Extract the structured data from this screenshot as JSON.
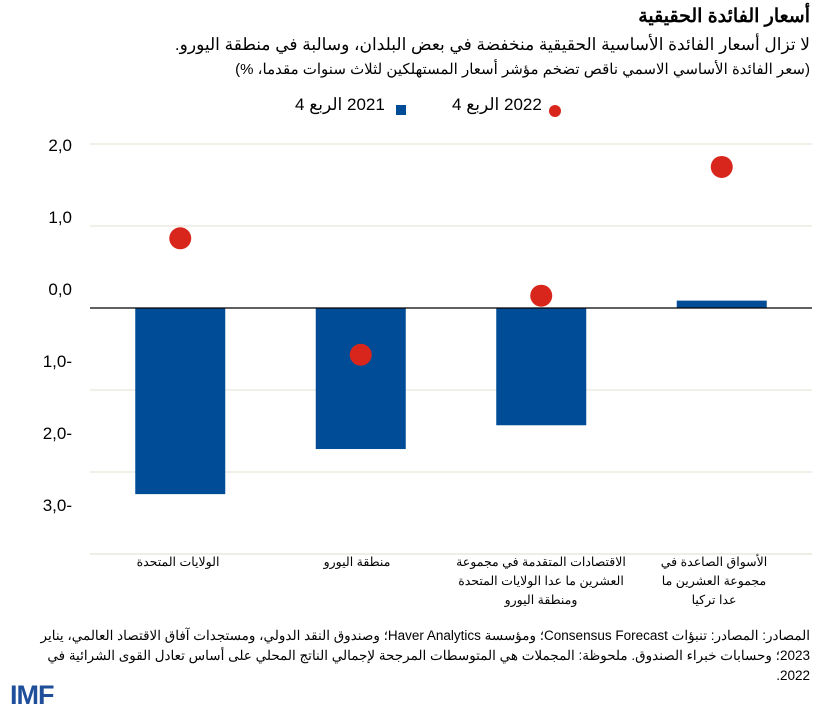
{
  "header": {
    "title": "أسعار الفائدة الحقيقية",
    "subtitle": "لا تزال أسعار الفائدة الأساسية الحقيقية منخفضة في بعض البلدان، وسالبة في منطقة اليورو.",
    "note": "(سعر الفائدة الأساسي الاسمي ناقص تضخم مؤشر أسعار المستهلكين لثلاث سنوات مقدما، %)"
  },
  "chart_data": {
    "type": "bar",
    "categories": [
      "الولايات المتحدة",
      "منطقة اليورو",
      "الاقتصادات المتقدمة في مجموعة العشرين ما عدا الولايات المتحدة ومنطقة اليورو",
      "الأسواق الصاعدة في مجموعة العشرين ما عدا تركيا"
    ],
    "series": [
      {
        "name": "2021 الربع 4",
        "kind": "bar",
        "color": "#004c97",
        "values": [
          -2.27,
          -1.72,
          -1.43,
          0.09
        ]
      },
      {
        "name": "2022 الربع 4",
        "kind": "dot",
        "color": "#d9261c",
        "values": [
          0.85,
          -0.57,
          0.15,
          1.72
        ]
      }
    ],
    "ylim": [
      -3,
      2
    ],
    "yticks": [
      2,
      1,
      0,
      -1,
      -2,
      -3
    ],
    "ytick_labels": [
      "2,0",
      "1,0",
      "0,0",
      "1,0-",
      "2,0-",
      "3,0-"
    ],
    "grid": true,
    "legend": "top"
  },
  "footer": {
    "sources": "المصادر: المصادر: تنبؤات Consensus Forecast؛ ومؤسسة Haver Analytics؛ وصندوق النقد الدولي، ومستجدات آفاق الاقتصاد العالمي، يناير 2023؛ وحسابات خبراء الصندوق. ملحوظة: المجملات هي المتوسطات المرجحة لإجمالي الناتج المحلي على أساس تعادل القوى الشرائية في 2022."
  },
  "logo": "IMF"
}
